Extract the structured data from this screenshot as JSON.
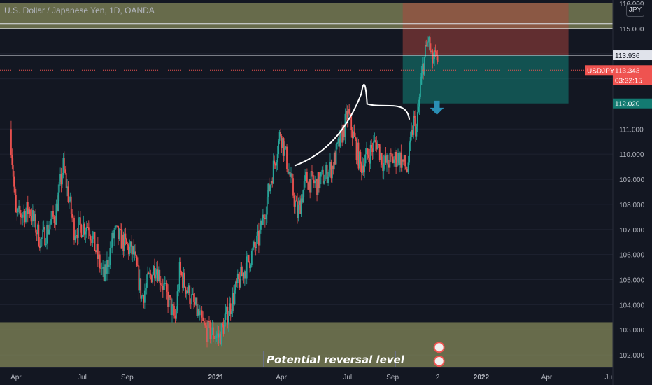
{
  "chart_title": "U.S. Dollar / Japanese Yen, 1D, OANDA",
  "currency": "JPY",
  "annotation_text": "Potential reversal level",
  "colors": {
    "background": "#131722",
    "up": "#26a69a",
    "down": "#ef5350",
    "zone": "#888c5c",
    "stop_zone": "#b0463e",
    "target_zone": "#137a71",
    "arrow": "#2a8fb5"
  },
  "chart_data": {
    "type": "candlestick",
    "symbol": "USDJPY",
    "interval": "1D",
    "ylim": [
      101.5,
      116.0
    ],
    "y_ticks": [
      "116.000",
      "115.000",
      "113.936",
      "113.343",
      "112.020",
      "111.000",
      "110.000",
      "109.000",
      "108.000",
      "107.000",
      "106.000",
      "105.000",
      "104.000",
      "103.000",
      "102.000"
    ],
    "x_ticks": [
      "Apr",
      "Jul",
      "Sep",
      "2021",
      "Apr",
      "Jul",
      "Sep",
      "2",
      "2022",
      "Apr",
      "Ju"
    ],
    "close_path": [
      {
        "date": "2020-03-24",
        "close": 111.0
      },
      {
        "date": "2020-04-01",
        "close": 107.5
      },
      {
        "date": "2020-04-20",
        "close": 107.8
      },
      {
        "date": "2020-05-05",
        "close": 106.5
      },
      {
        "date": "2020-05-25",
        "close": 107.6
      },
      {
        "date": "2020-06-05",
        "close": 109.5
      },
      {
        "date": "2020-06-20",
        "close": 107.0
      },
      {
        "date": "2020-07-10",
        "close": 107.2
      },
      {
        "date": "2020-07-31",
        "close": 105.0
      },
      {
        "date": "2020-08-14",
        "close": 106.9
      },
      {
        "date": "2020-09-10",
        "close": 106.0
      },
      {
        "date": "2020-09-21",
        "close": 104.3
      },
      {
        "date": "2020-10-10",
        "close": 105.6
      },
      {
        "date": "2020-11-06",
        "close": 103.4
      },
      {
        "date": "2020-11-12",
        "close": 105.3
      },
      {
        "date": "2020-12-17",
        "close": 103.0
      },
      {
        "date": "2021-01-06",
        "close": 102.7
      },
      {
        "date": "2021-01-31",
        "close": 104.8
      },
      {
        "date": "2021-03-01",
        "close": 106.6
      },
      {
        "date": "2021-03-31",
        "close": 110.9
      },
      {
        "date": "2021-04-10",
        "close": 109.5
      },
      {
        "date": "2021-04-23",
        "close": 107.6
      },
      {
        "date": "2021-05-05",
        "close": 109.0
      },
      {
        "date": "2021-05-20",
        "close": 108.8
      },
      {
        "date": "2021-06-10",
        "close": 109.5
      },
      {
        "date": "2021-07-02",
        "close": 111.6
      },
      {
        "date": "2021-07-19",
        "close": 109.5
      },
      {
        "date": "2021-08-10",
        "close": 110.5
      },
      {
        "date": "2021-08-20",
        "close": 109.6
      },
      {
        "date": "2021-09-10",
        "close": 109.9
      },
      {
        "date": "2021-09-21",
        "close": 109.4
      },
      {
        "date": "2021-09-30",
        "close": 111.3
      },
      {
        "date": "2021-10-04",
        "close": 111.0
      },
      {
        "date": "2021-10-12",
        "close": 113.4
      },
      {
        "date": "2021-10-20",
        "close": 114.6
      },
      {
        "date": "2021-10-25",
        "close": 113.7
      },
      {
        "date": "2021-10-30",
        "close": 113.8
      },
      {
        "date": "2021-11-02",
        "close": 113.343
      }
    ],
    "levels": [
      {
        "price": "115.000",
        "style": "horizontal-line"
      },
      {
        "price": "113.936",
        "style": "horizontal-line",
        "label_visible": true
      },
      {
        "price": "113.343",
        "style": "last-price",
        "label": "USDJPY",
        "countdown": "03:32:15"
      },
      {
        "price": "112.020",
        "style": "target",
        "label_visible": true
      }
    ],
    "position": {
      "side": "short",
      "entry": "113.936",
      "stop_top": "116.000",
      "target": "112.020"
    },
    "zones": [
      {
        "from": 115.0,
        "to": 116.0
      },
      {
        "from": 101.5,
        "to": 103.3
      }
    ]
  }
}
